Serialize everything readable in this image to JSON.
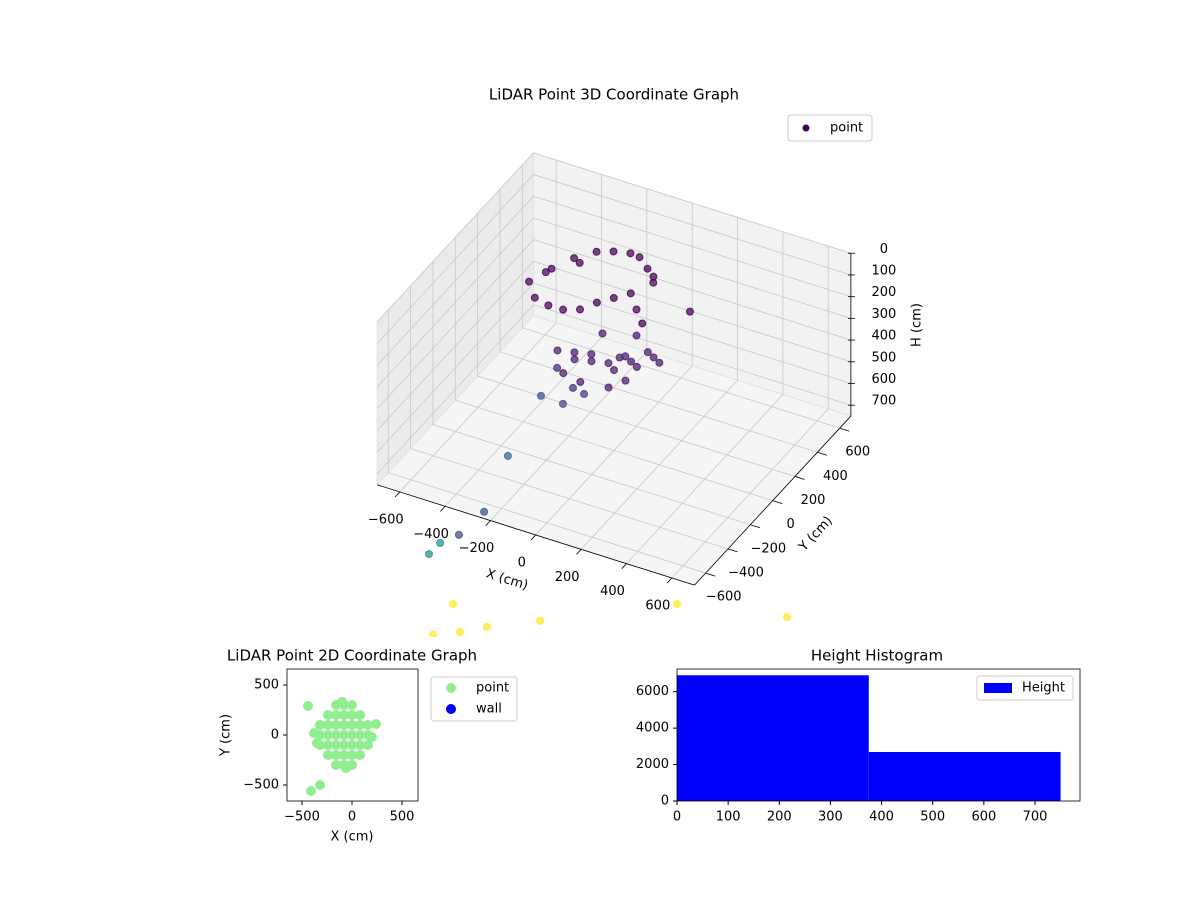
{
  "chart_data": [
    {
      "type": "scatter3d",
      "title": "LiDAR Point 3D Coordinate Graph",
      "x_label": "X (cm)",
      "y_label": "Y (cm)",
      "z_label": "H (cm)",
      "xlim": [
        -700,
        700
      ],
      "ylim": [
        -700,
        700
      ],
      "zlim": [
        0,
        750
      ],
      "z_inverted": true,
      "xticks": [
        {
          "value": -600,
          "label": "−600"
        },
        {
          "value": -400,
          "label": "−400"
        },
        {
          "value": -200,
          "label": "−200"
        },
        0,
        200,
        400,
        600
      ],
      "yticks": [
        {
          "value": -600,
          "label": "−600"
        },
        {
          "value": -400,
          "label": "−400"
        },
        {
          "value": -200,
          "label": "−200"
        },
        0,
        200,
        400,
        600
      ],
      "zticks": [
        0,
        100,
        200,
        300,
        400,
        500,
        600,
        700
      ],
      "grid": true,
      "legend": "upper right",
      "series": [
        {
          "name": "point",
          "color": "#440154",
          "x": [
            -350,
            -300,
            -250,
            -200,
            -150,
            -100,
            -50,
            0,
            50,
            -300,
            -250,
            -200,
            -150,
            -100,
            -50,
            0,
            50,
            100,
            -350,
            -250,
            -100,
            -50,
            0,
            50,
            100,
            150,
            -150,
            -100,
            0,
            100,
            150,
            -50,
            50,
            200,
            -200,
            0,
            50,
            -100,
            100,
            -150,
            -251,
            -181,
            -132,
            -322,
            -225,
            335,
            100,
            -468,
            -573,
            -684,
            -767,
            -816,
            -710,
            -798,
            -679,
            -560,
            -326,
            278,
            763
          ],
          "y": [
            -50,
            50,
            150,
            250,
            300,
            350,
            330,
            300,
            250,
            -100,
            -80,
            -50,
            0,
            50,
            100,
            150,
            100,
            50,
            100,
            200,
            -150,
            -100,
            -50,
            0,
            -50,
            -100,
            -50,
            0,
            50,
            100,
            50,
            -200,
            -150,
            0,
            -100,
            0,
            100,
            100,
            -100,
            -150,
            0,
            0,
            0,
            0,
            0,
            0,
            150,
            0,
            0,
            0,
            0,
            0,
            0,
            0,
            0,
            0,
            0,
            0,
            0
          ],
          "h": [
            60,
            40,
            30,
            40,
            50,
            70,
            60,
            80,
            100,
            90,
            120,
            140,
            150,
            130,
            120,
            110,
            140,
            160,
            100,
            80,
            280,
            300,
            320,
            300,
            280,
            260,
            320,
            340,
            350,
            320,
            300,
            340,
            360,
            280,
            300,
            380,
            260,
            300,
            340,
            360,
            453,
            522,
            534,
            605,
            610,
            0,
            0,
            930,
            1222,
            1365,
            1430,
            1497,
            1692,
            1863,
            1811,
            1748,
            1643,
            1365,
            1265
          ],
          "colors": [
            "#440154",
            "#440154",
            "#440154",
            "#440154",
            "#440154",
            "#440154",
            "#440154",
            "#440154",
            "#440154",
            "#440154",
            "#440154",
            "#440154",
            "#440154",
            "#440154",
            "#440154",
            "#440154",
            "#440154",
            "#440154",
            "#440154",
            "#440154",
            "#481a6c",
            "#481a6c",
            "#481a6c",
            "#481a6c",
            "#481a6c",
            "#481a6c",
            "#481a6c",
            "#481a6c",
            "#481a6c",
            "#481a6c",
            "#481a6c",
            "#481a6c",
            "#481a6c",
            "#481a6c",
            "#481a6c",
            "#481a6c",
            "#481a6c",
            "#481a6c",
            "#481a6c",
            "#481a6c",
            "#472d7b",
            "#46337f",
            "#443983",
            "#3b528b",
            "#414487",
            "#440154",
            "#440154",
            "#31688e",
            "#3b528b",
            "#3e4a89",
            "#21918c",
            "#21918c",
            "#fde725",
            "#fde725",
            "#fde725",
            "#fde725",
            "#fde725",
            "#fde725",
            "#fde725"
          ]
        }
      ]
    },
    {
      "type": "scatter",
      "title": "LiDAR Point 2D Coordinate Graph",
      "x_label": "X (cm)",
      "y_label": "Y (cm)",
      "xlim": [
        -650,
        660
      ],
      "ylim": [
        -660,
        660
      ],
      "xticks": [
        {
          "value": -500,
          "label": "−500"
        },
        0,
        500
      ],
      "yticks": [
        {
          "value": -500,
          "label": "−500"
        },
        0,
        500
      ],
      "legend": "outside right",
      "series": [
        {
          "name": "point",
          "color": "#90ee90",
          "x": [
            -320,
            -320,
            -320,
            -240,
            -240,
            -240,
            -240,
            -240,
            -160,
            -160,
            -160,
            -160,
            -160,
            -160,
            -160,
            -80,
            -80,
            -80,
            -80,
            -80,
            -80,
            -80,
            0,
            0,
            0,
            0,
            0,
            0,
            0,
            80,
            80,
            80,
            80,
            80,
            160,
            160,
            160,
            -380,
            -350,
            200,
            -100,
            -60,
            -440,
            -410,
            -320,
            240
          ],
          "y": [
            -100,
            0,
            100,
            -200,
            -100,
            0,
            100,
            200,
            -300,
            -200,
            -100,
            0,
            100,
            200,
            300,
            -300,
            -200,
            -100,
            0,
            100,
            200,
            300,
            -300,
            -200,
            -100,
            0,
            100,
            200,
            300,
            -200,
            -100,
            0,
            100,
            200,
            -100,
            0,
            100,
            20,
            -80,
            -20,
            330,
            -330,
            290,
            -560,
            -500,
            110
          ]
        },
        {
          "name": "wall",
          "color": "#0000ff",
          "x": [],
          "y": []
        }
      ]
    },
    {
      "type": "histogram",
      "title": "Height Histogram",
      "bins": [
        0,
        375,
        750
      ],
      "values": [
        6900,
        2690
      ],
      "color": "#0000ff",
      "series_name": "Height",
      "xlim": [
        0,
        788
      ],
      "ylim": [
        0,
        7245
      ],
      "xticks": [
        0,
        100,
        200,
        300,
        400,
        500,
        600,
        700
      ],
      "yticks": [
        0,
        2000,
        4000,
        6000
      ],
      "legend": "upper right"
    }
  ]
}
